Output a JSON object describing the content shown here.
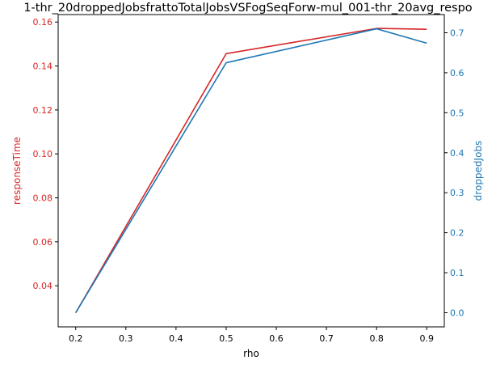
{
  "chart_data": {
    "type": "line",
    "title": "1-thr_20droppedJobsfrattoTotalJobsVSFogSeqForw-mul_001-thr_20avg_respo",
    "xlabel": "rho",
    "x": [
      0.2,
      0.5,
      0.8,
      0.9
    ],
    "x_ticks": [
      "0.2",
      "0.3",
      "0.4",
      "0.5",
      "0.6",
      "0.7",
      "0.8",
      "0.9"
    ],
    "xlim": [
      0.165,
      0.935
    ],
    "left_axis": {
      "label": "responseTime",
      "color": "#d62728",
      "ylim": [
        0.0213,
        0.1634
      ],
      "ticks": [
        "0.04",
        "0.06",
        "0.08",
        "0.10",
        "0.12",
        "0.14",
        "0.16"
      ]
    },
    "right_axis": {
      "label": "droppedJobs",
      "color": "#1f77b4",
      "ylim": [
        -0.0355,
        0.7455
      ],
      "ticks": [
        "0.0",
        "0.1",
        "0.2",
        "0.3",
        "0.4",
        "0.5",
        "0.6",
        "0.7"
      ]
    },
    "series": [
      {
        "axis": "left",
        "color": "#d62728",
        "values": [
          0.0277,
          0.1456,
          0.1571,
          0.1567
        ]
      },
      {
        "axis": "right",
        "color": "#1f77b4",
        "values": [
          0.0,
          0.625,
          0.71,
          0.674
        ]
      }
    ],
    "grid": false,
    "legend": "none"
  }
}
